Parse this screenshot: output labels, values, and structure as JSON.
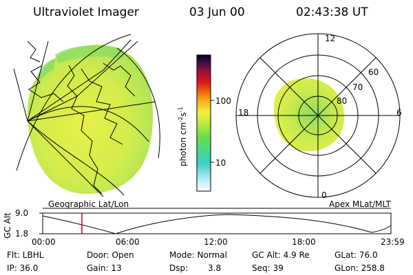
{
  "header": {
    "title": "Ultraviolet Imager",
    "date": "03 Jun 00",
    "time": "02:43:38 UT"
  },
  "colorbar": {
    "label": "photon cm",
    "label_sup1": "-2",
    "label_s": "s",
    "label_sup2": "-1",
    "tick_100": "100",
    "tick_10": "10"
  },
  "polar_plot": {
    "label_12": "12",
    "label_18": "18",
    "label_6": "6",
    "label_0": "0",
    "lat_60": "60",
    "lat_70": "70",
    "lat_80": "80"
  },
  "panels": {
    "left_caption": "Geographic Lat/Lon",
    "right_caption": "Apex MLat/MLT"
  },
  "timeline": {
    "y_label": "GC Alt",
    "y_max": "9.0",
    "y_min": "1.8",
    "x_ticks": [
      "00:00",
      "06:00",
      "12:00",
      "18:00",
      "23:59"
    ],
    "marker_color": "#cc0000"
  },
  "footer": {
    "flt": "Flt: LBHL",
    "ip": "IP: 36.0",
    "door": "Door: Open",
    "gain": "Gain: 13",
    "mode": "Mode: Normal",
    "dsp_label": "Dsp:",
    "dsp_value": "3.8",
    "gcalt": "GC Alt: 4.9 Re",
    "seq": "Seq: 39",
    "glat": "GLat: 76.0",
    "glon": "GLon: 258.8"
  },
  "colors": {
    "aurora_green": "#a6e05a",
    "aurora_yellow": "#e6f04a",
    "aurora_cyan": "#5fd6c8"
  }
}
